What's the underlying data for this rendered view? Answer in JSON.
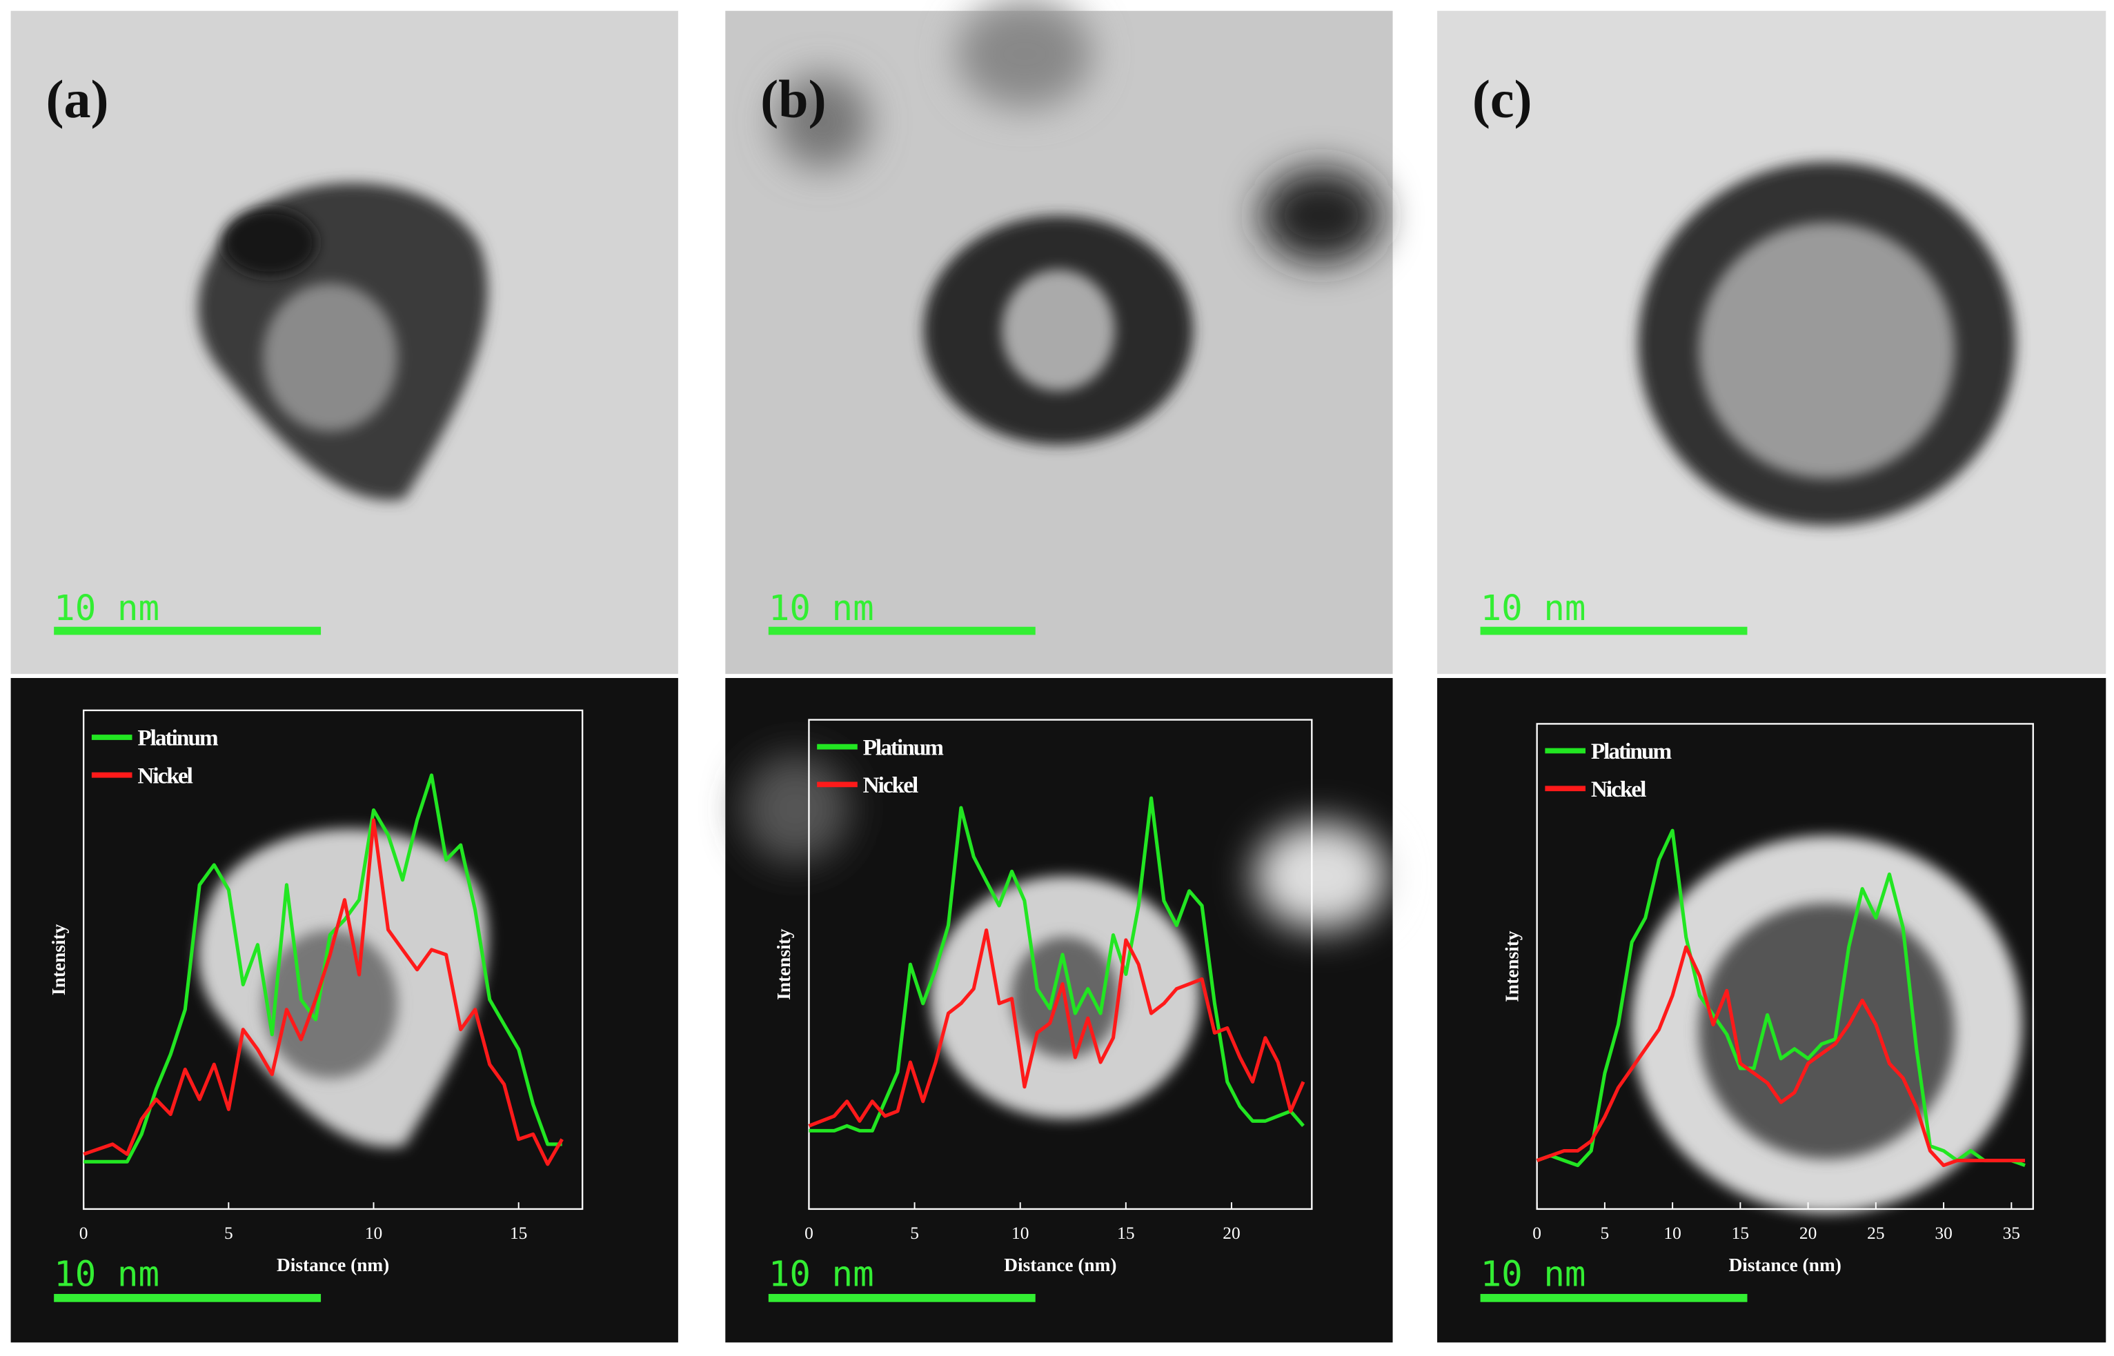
{
  "panels": [
    {
      "label": "(a)",
      "scale_bar": "10 nm",
      "chart_scale_bar": "10 nm"
    },
    {
      "label": "(b)",
      "scale_bar": "10 nm",
      "chart_scale_bar": "10 nm"
    },
    {
      "label": "(c)",
      "scale_bar": "10 nm",
      "chart_scale_bar": "10 nm"
    }
  ],
  "chart_data": [
    {
      "type": "line",
      "x_label": "Distance (nm)",
      "y_label": "Intensity",
      "xlim": [
        0,
        17.2
      ],
      "ylim": [
        0,
        100
      ],
      "xticks": [
        0,
        5,
        10,
        15
      ],
      "x": [
        0,
        0.5,
        1,
        1.5,
        2,
        2.5,
        3,
        3.5,
        4,
        4.5,
        5,
        5.5,
        6,
        6.5,
        7,
        7.5,
        8,
        8.5,
        9,
        9.5,
        10,
        10.5,
        11,
        11.5,
        12,
        12.5,
        13,
        13.5,
        14,
        14.5,
        15,
        15.5,
        16,
        16.5
      ],
      "series": [
        {
          "name": "Platinum",
          "color": "#22e622",
          "values": [
            9.5,
            9.5,
            9.5,
            9.5,
            15,
            24,
            31,
            40,
            65,
            69,
            64,
            45,
            53,
            35,
            65,
            42,
            38,
            55,
            58,
            62,
            80,
            75,
            66,
            78,
            87,
            70,
            73,
            60,
            42,
            37,
            32,
            21,
            13,
            13
          ]
        },
        {
          "name": "Nickel",
          "color": "#ff1a1a",
          "values": [
            11,
            12,
            13,
            11,
            18,
            22,
            19,
            28,
            22,
            29,
            20,
            36,
            32,
            27,
            40,
            34,
            42,
            51,
            62,
            47,
            78,
            56,
            52,
            48,
            52,
            51,
            36,
            40,
            29,
            25,
            14,
            15,
            9,
            14
          ]
        }
      ]
    },
    {
      "type": "line",
      "x_label": "Distance (nm)",
      "y_label": "Intensity",
      "xlim": [
        0,
        23.8
      ],
      "ylim": [
        0,
        100
      ],
      "xticks": [
        0,
        5,
        10,
        15,
        20
      ],
      "x": [
        0,
        0.6,
        1.2,
        1.8,
        2.4,
        3.0,
        3.6,
        4.2,
        4.8,
        5.4,
        6.0,
        6.6,
        7.2,
        7.8,
        8.4,
        9.0,
        9.6,
        10.2,
        10.8,
        11.4,
        12.0,
        12.6,
        13.2,
        13.8,
        14.4,
        15.0,
        15.6,
        16.2,
        16.8,
        17.4,
        18.0,
        18.6,
        19.2,
        19.8,
        20.4,
        21.0,
        21.6,
        22.2,
        22.8,
        23.4
      ],
      "series": [
        {
          "name": "Platinum",
          "color": "#22e622",
          "values": [
            16,
            16,
            16,
            17,
            16,
            16,
            22,
            28,
            50,
            42,
            49,
            58,
            82,
            72,
            67,
            62,
            69,
            63,
            45,
            41,
            52,
            40,
            45,
            40,
            56,
            48,
            62,
            84,
            63,
            58,
            65,
            62,
            42,
            26,
            21,
            18,
            18,
            19,
            20,
            17
          ]
        },
        {
          "name": "Nickel",
          "color": "#ff1a1a",
          "values": [
            17,
            18,
            19,
            22,
            18,
            22,
            19,
            20,
            30,
            22,
            30,
            40,
            42,
            45,
            57,
            42,
            43,
            25,
            36,
            38,
            46,
            31,
            39,
            30,
            35,
            55,
            50,
            40,
            42,
            45,
            46,
            47,
            36,
            37,
            31,
            26,
            35,
            30,
            20,
            26
          ]
        }
      ]
    },
    {
      "type": "line",
      "x_label": "Distance (nm)",
      "y_label": "Intensity",
      "xlim": [
        0,
        36.6
      ],
      "ylim": [
        0,
        100
      ],
      "xticks": [
        0,
        5,
        10,
        15,
        20,
        25,
        30,
        35
      ],
      "x": [
        0,
        1,
        2,
        3,
        4,
        5,
        6,
        7,
        8,
        9,
        10,
        11,
        12,
        13,
        14,
        15,
        16,
        17,
        18,
        19,
        20,
        21,
        22,
        23,
        24,
        25,
        26,
        27,
        28,
        29,
        30,
        31,
        32,
        33,
        34,
        35,
        36
      ],
      "series": [
        {
          "name": "Platinum",
          "color": "#22e622",
          "values": [
            10,
            11,
            10,
            9,
            12,
            28,
            38,
            55,
            60,
            72,
            78,
            56,
            44,
            40,
            36,
            29,
            29,
            40,
            31,
            33,
            31,
            34,
            35,
            54,
            66,
            60,
            69,
            58,
            33,
            13,
            12,
            10,
            12,
            10,
            10,
            10,
            9
          ]
        },
        {
          "name": "Nickel",
          "color": "#ff1a1a",
          "values": [
            10,
            11,
            12,
            12,
            14,
            19,
            25,
            29,
            33,
            37,
            44,
            54,
            48,
            38,
            45,
            30,
            28,
            26,
            22,
            24,
            30,
            32,
            34,
            38,
            43,
            38,
            30,
            27,
            21,
            12,
            9,
            10,
            10,
            10,
            10,
            10,
            10
          ]
        }
      ]
    }
  ]
}
